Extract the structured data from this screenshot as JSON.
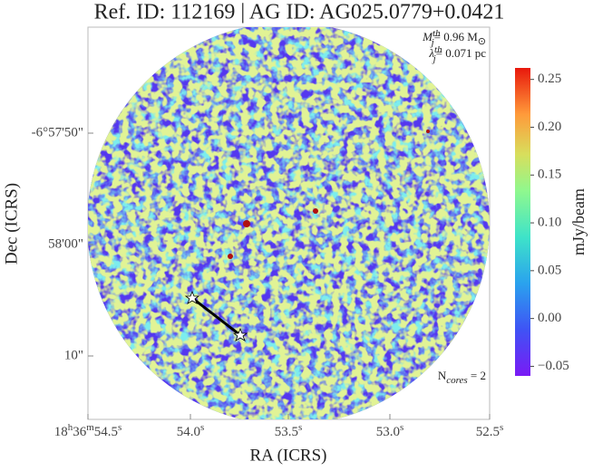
{
  "title": "Ref. ID: 112169 | AG ID: AG025.0779+0.0421",
  "annotations": {
    "mass": {
      "symbol": "M",
      "sup": "th",
      "sub": "j",
      "text": "= 0.96 M",
      "unit_sub": "⊙"
    },
    "length": {
      "symbol": "λ",
      "sup": "th",
      "sub": "j",
      "text": "= 0.071 pc"
    },
    "cores": {
      "symbol": "N",
      "sub": "cores",
      "text": " = 2"
    }
  },
  "x_label": "RA (ICRS)",
  "y_label": "Dec (ICRS)",
  "ra_ticks": [
    [
      [
        "18",
        "h"
      ],
      [
        "36",
        "m"
      ],
      [
        "54.5",
        "s"
      ]
    ],
    [
      [
        "54.0",
        "s"
      ]
    ],
    [
      [
        "53.5",
        "s"
      ]
    ],
    [
      [
        "53.0",
        "s"
      ]
    ],
    [
      [
        "52.5",
        "s"
      ]
    ]
  ],
  "dec_ticks": [
    "-6°57'50\"",
    "58'00\"",
    "10\""
  ],
  "colorbar": {
    "label": "mJy/beam",
    "clim": [
      -0.06,
      0.262
    ],
    "ticks": [
      {
        "value": -0.05,
        "label": "−0.05"
      },
      {
        "value": 0,
        "label": "0.00"
      },
      0.05,
      {
        "value": 0.1,
        "label": "0.10"
      },
      0.15,
      {
        "value": 0.2,
        "label": "0.20"
      },
      0.25
    ]
  }
}
